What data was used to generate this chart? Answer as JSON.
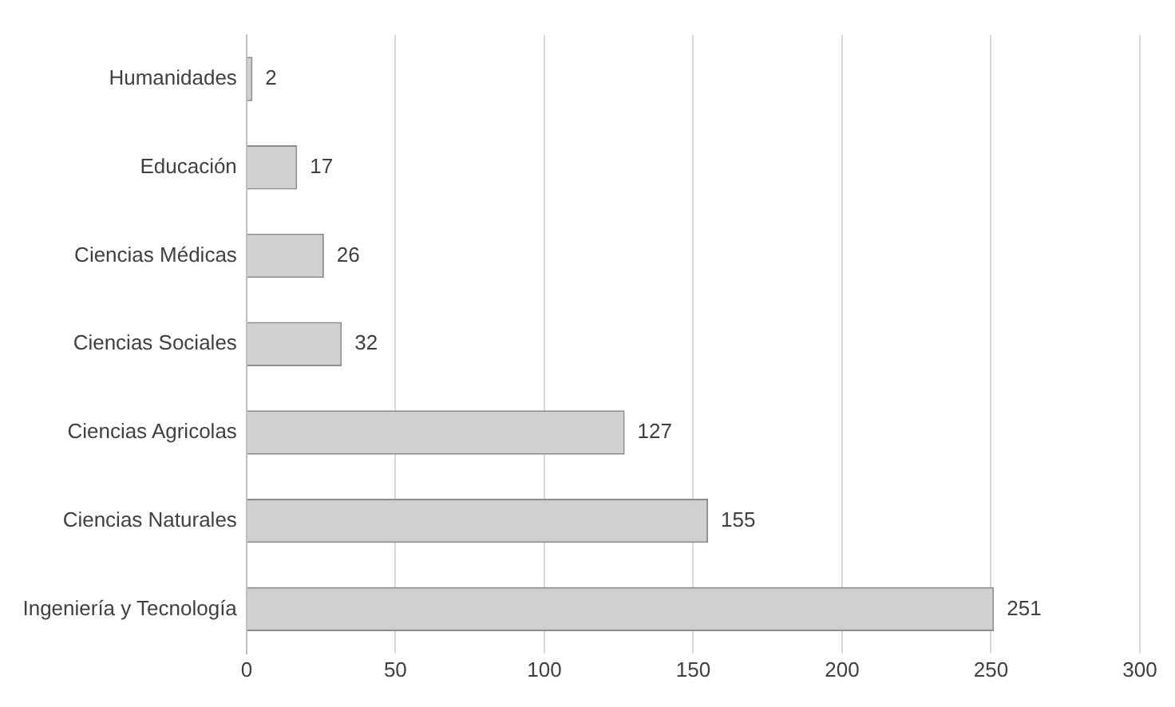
{
  "chart_data": {
    "type": "bar",
    "orientation": "horizontal",
    "categories": [
      "Humanidades",
      "Educación",
      "Ciencias Médicas",
      "Ciencias Sociales",
      "Ciencias Agricolas",
      "Ciencias Naturales",
      "Ingeniería y Tecnología"
    ],
    "values": [
      2,
      17,
      26,
      32,
      127,
      155,
      251
    ],
    "color": "#d0d0d0",
    "xlim": [
      0,
      300
    ],
    "xticks": [
      0,
      50,
      100,
      150,
      200,
      250,
      300
    ],
    "grid": "x",
    "data_labels": true,
    "legend": false
  }
}
